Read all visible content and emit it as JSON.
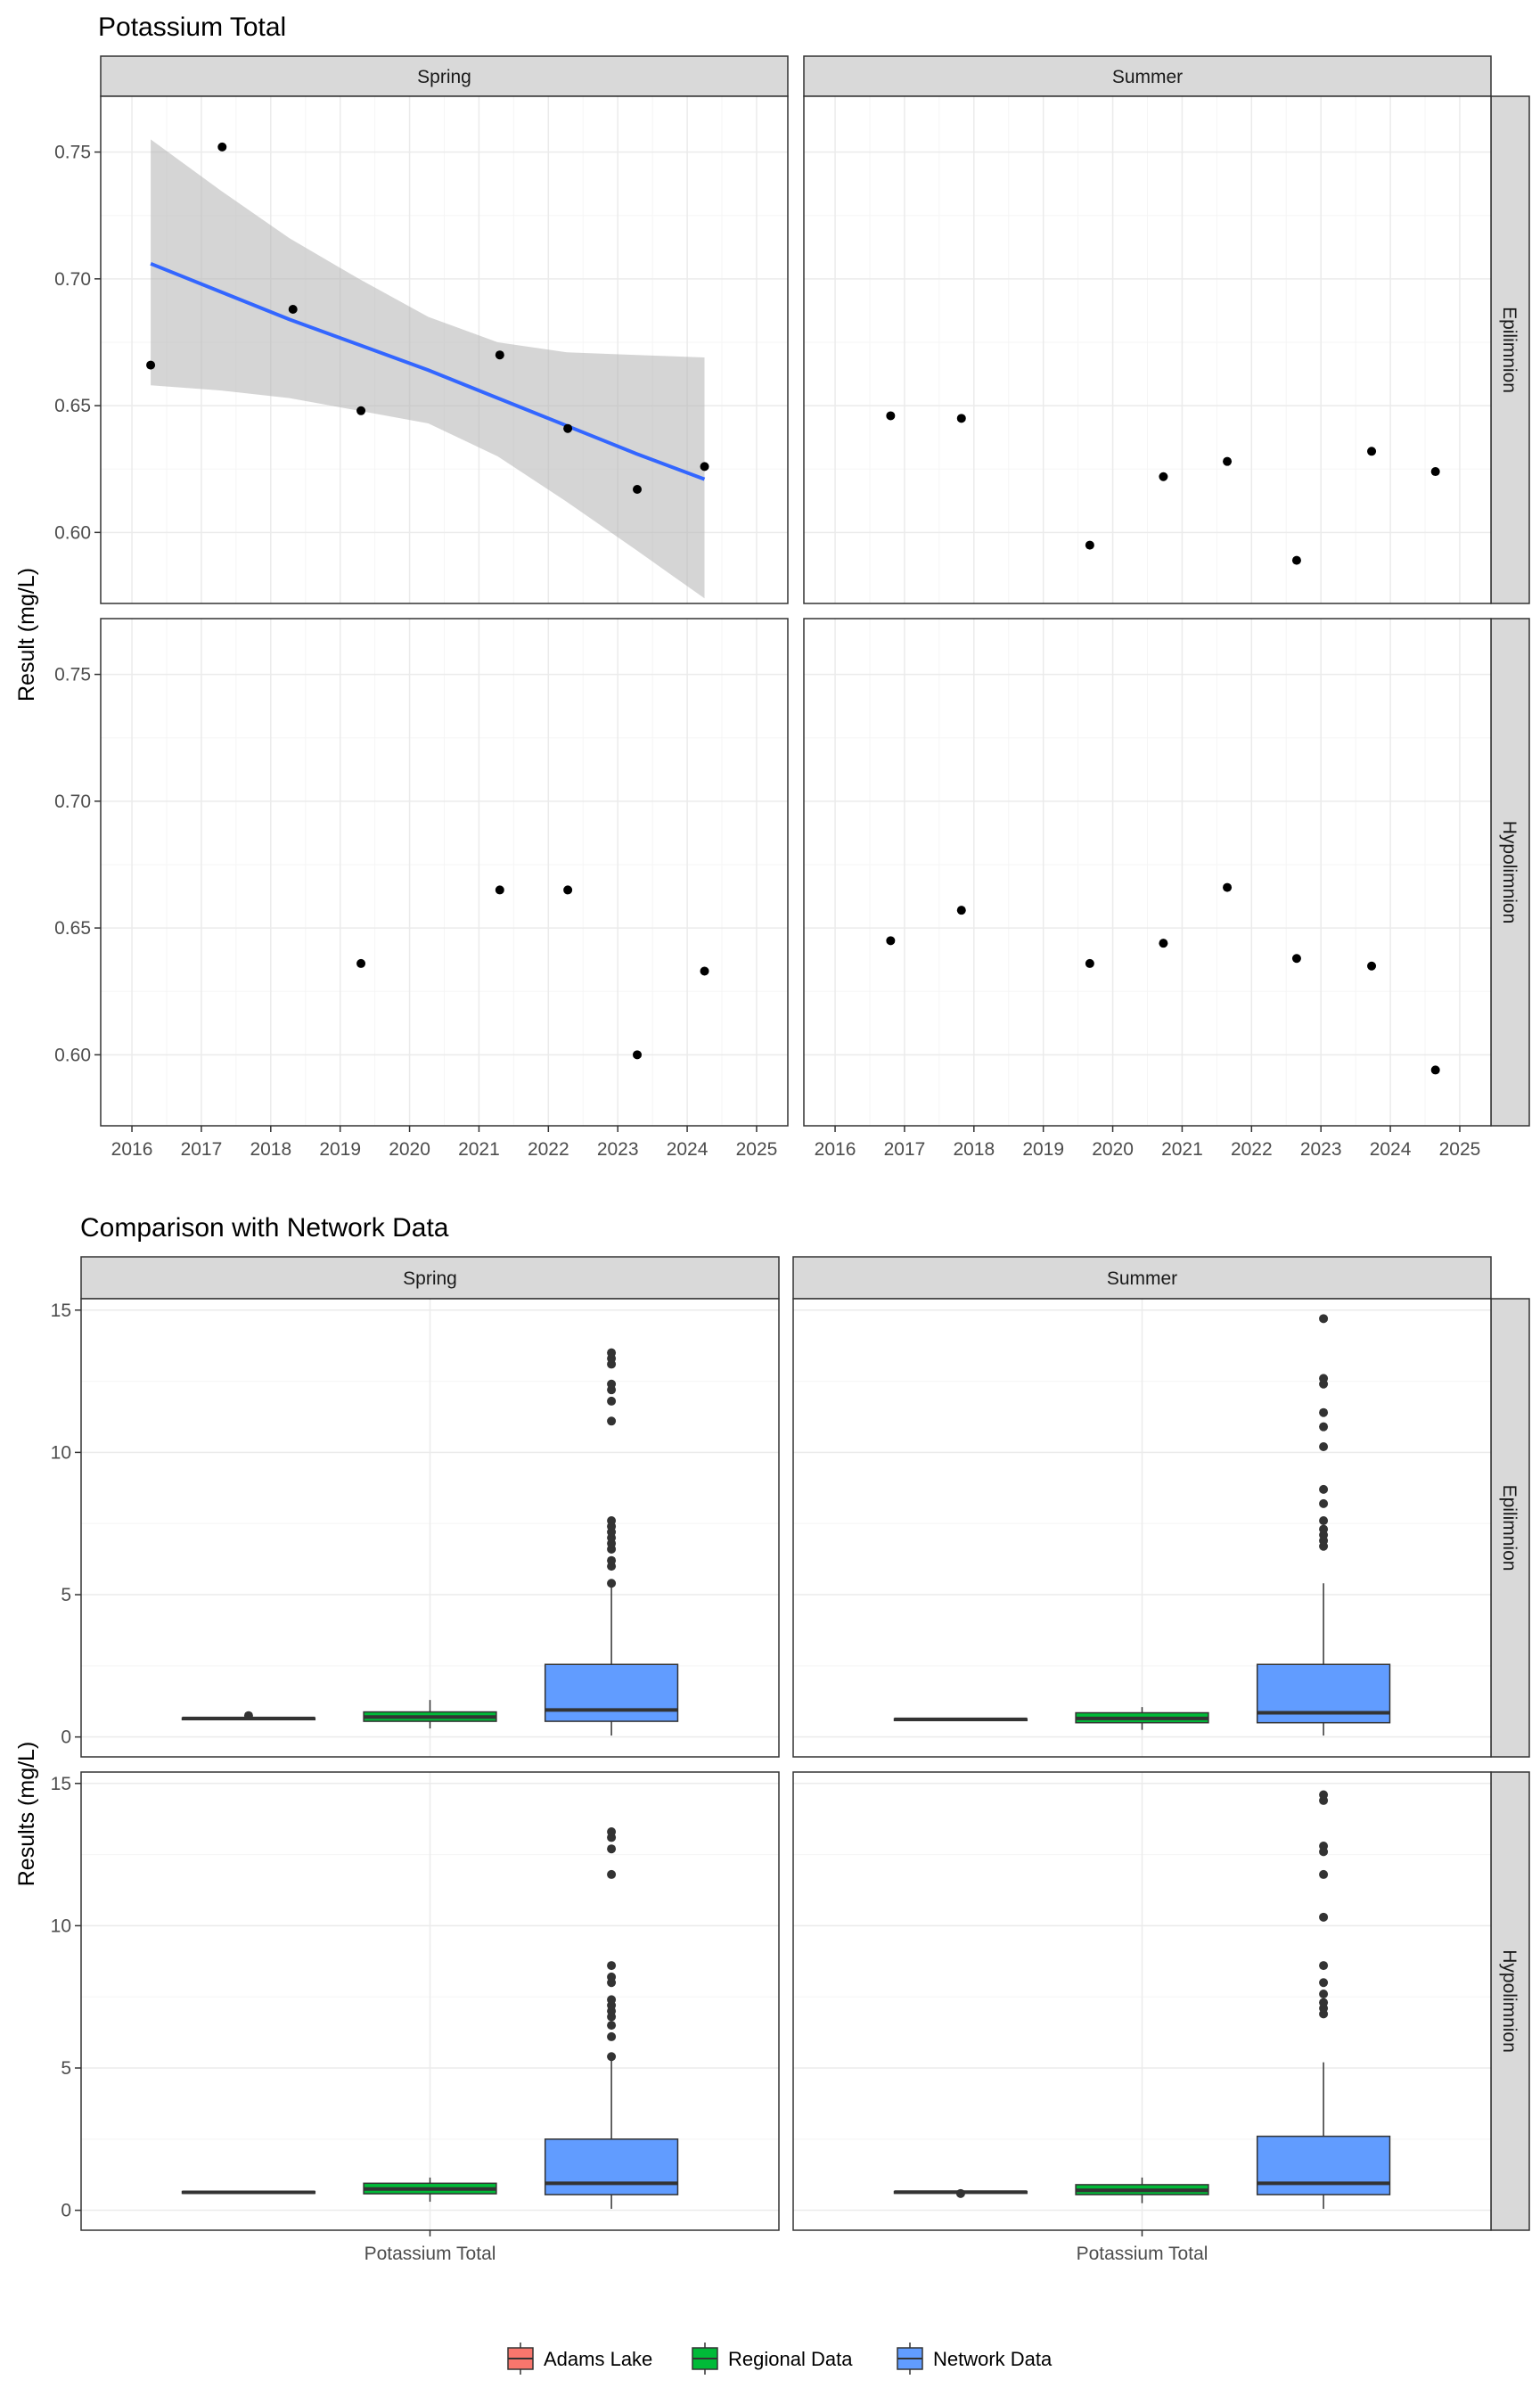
{
  "chart_data": [
    {
      "type": "scatter",
      "title": "Potassium Total",
      "ylabel": "Result (mg/L)",
      "xlabel": "",
      "x_ticks": [
        "2016",
        "2017",
        "2018",
        "2019",
        "2020",
        "2021",
        "2022",
        "2023",
        "2024",
        "2025"
      ],
      "xlim": [
        2015.55,
        2025.45
      ],
      "ylim": [
        0.572,
        0.772
      ],
      "y_ticks": [
        "0.60",
        "0.65",
        "0.70",
        "0.75"
      ],
      "facet_columns": [
        "Spring",
        "Summer"
      ],
      "facet_rows": [
        "Epilimnion",
        "Hypolimnion"
      ],
      "grid": true,
      "point_color": "#000000",
      "trend_color": "#3366ff",
      "band_color": "#b3b3b3",
      "panels": [
        {
          "column": "Spring",
          "row": "Epilimnion",
          "points": [
            {
              "x": 2016.27,
              "y": 0.666
            },
            {
              "x": 2017.3,
              "y": 0.752
            },
            {
              "x": 2018.32,
              "y": 0.688
            },
            {
              "x": 2019.3,
              "y": 0.648
            },
            {
              "x": 2021.3,
              "y": 0.67
            },
            {
              "x": 2022.28,
              "y": 0.641
            },
            {
              "x": 2023.28,
              "y": 0.617
            },
            {
              "x": 2024.25,
              "y": 0.626
            }
          ],
          "trend": {
            "x": [
              2016.27,
              2017.27,
              2018.27,
              2019.27,
              2020.27,
              2021.27,
              2022.27,
              2023.27,
              2024.25
            ],
            "fit": [
              0.706,
              0.695,
              0.684,
              0.674,
              0.664,
              0.653,
              0.642,
              0.631,
              0.621
            ],
            "lower": [
              0.658,
              0.656,
              0.653,
              0.648,
              0.643,
              0.63,
              0.612,
              0.593,
              0.574
            ],
            "upper": [
              0.755,
              0.735,
              0.716,
              0.7,
              0.685,
              0.675,
              0.671,
              0.67,
              0.669
            ]
          }
        },
        {
          "column": "Summer",
          "row": "Epilimnion",
          "points": [
            {
              "x": 2016.8,
              "y": 0.646
            },
            {
              "x": 2017.82,
              "y": 0.645
            },
            {
              "x": 2019.67,
              "y": 0.595
            },
            {
              "x": 2020.73,
              "y": 0.622
            },
            {
              "x": 2021.65,
              "y": 0.628
            },
            {
              "x": 2022.65,
              "y": 0.589
            },
            {
              "x": 2023.73,
              "y": 0.632
            },
            {
              "x": 2024.65,
              "y": 0.624
            }
          ]
        },
        {
          "column": "Spring",
          "row": "Hypolimnion",
          "points": [
            {
              "x": 2019.3,
              "y": 0.636
            },
            {
              "x": 2021.3,
              "y": 0.665
            },
            {
              "x": 2022.28,
              "y": 0.665
            },
            {
              "x": 2023.28,
              "y": 0.6
            },
            {
              "x": 2024.25,
              "y": 0.633
            }
          ]
        },
        {
          "column": "Summer",
          "row": "Hypolimnion",
          "points": [
            {
              "x": 2016.8,
              "y": 0.645
            },
            {
              "x": 2017.82,
              "y": 0.657
            },
            {
              "x": 2019.67,
              "y": 0.636
            },
            {
              "x": 2020.73,
              "y": 0.644
            },
            {
              "x": 2021.65,
              "y": 0.666
            },
            {
              "x": 2022.65,
              "y": 0.638
            },
            {
              "x": 2023.73,
              "y": 0.635
            },
            {
              "x": 2024.65,
              "y": 0.594
            }
          ]
        }
      ]
    },
    {
      "type": "box",
      "title": "Comparison with Network Data",
      "ylabel": "Results (mg/L)",
      "xlabel": "",
      "x_tick": "Potassium Total",
      "ylim": [
        -0.7,
        15.4
      ],
      "y_ticks": [
        "0",
        "5",
        "10",
        "15"
      ],
      "facet_columns": [
        "Spring",
        "Summer"
      ],
      "facet_rows": [
        "Epilimnion",
        "Hypolimnion"
      ],
      "grid": true,
      "legend": {
        "position": "bottom",
        "items": [
          {
            "label": "Adams Lake",
            "color": "#f8766d"
          },
          {
            "label": "Regional Data",
            "color": "#00ba38"
          },
          {
            "label": "Network Data",
            "color": "#619cff"
          }
        ]
      },
      "panels": [
        {
          "column": "Spring",
          "row": "Epilimnion",
          "boxes": [
            {
              "group": "Adams Lake",
              "q1": 0.63,
              "median": 0.65,
              "q3": 0.67,
              "whisker_low": 0.61,
              "whisker_high": 0.69,
              "outliers": [
                0.75
              ]
            },
            {
              "group": "Regional Data",
              "q1": 0.55,
              "median": 0.7,
              "q3": 0.88,
              "whisker_low": 0.3,
              "whisker_high": 1.3,
              "outliers": []
            },
            {
              "group": "Network Data",
              "q1": 0.55,
              "median": 0.95,
              "q3": 2.55,
              "whisker_low": 0.05,
              "whisker_high": 5.4,
              "outliers": [
                5.4,
                6.0,
                6.2,
                6.6,
                6.8,
                7.0,
                7.2,
                7.4,
                7.6,
                11.1,
                11.8,
                12.2,
                12.4,
                13.1,
                13.3,
                13.5
              ]
            }
          ]
        },
        {
          "column": "Summer",
          "row": "Epilimnion",
          "boxes": [
            {
              "group": "Adams Lake",
              "q1": 0.6,
              "median": 0.62,
              "q3": 0.64,
              "whisker_low": 0.59,
              "whisker_high": 0.65,
              "outliers": []
            },
            {
              "group": "Regional Data",
              "q1": 0.5,
              "median": 0.65,
              "q3": 0.85,
              "whisker_low": 0.25,
              "whisker_high": 1.05,
              "outliers": []
            },
            {
              "group": "Network Data",
              "q1": 0.5,
              "median": 0.85,
              "q3": 2.55,
              "whisker_low": 0.05,
              "whisker_high": 5.4,
              "outliers": [
                6.7,
                6.9,
                7.1,
                7.3,
                7.6,
                8.2,
                8.7,
                10.2,
                10.9,
                11.4,
                12.4,
                12.6,
                14.7
              ]
            }
          ]
        },
        {
          "column": "Spring",
          "row": "Hypolimnion",
          "boxes": [
            {
              "group": "Adams Lake",
              "q1": 0.61,
              "median": 0.63,
              "q3": 0.66,
              "whisker_low": 0.6,
              "whisker_high": 0.665,
              "outliers": []
            },
            {
              "group": "Regional Data",
              "q1": 0.58,
              "median": 0.75,
              "q3": 0.95,
              "whisker_low": 0.3,
              "whisker_high": 1.15,
              "outliers": []
            },
            {
              "group": "Network Data",
              "q1": 0.55,
              "median": 0.95,
              "q3": 2.5,
              "whisker_low": 0.05,
              "whisker_high": 5.4,
              "outliers": [
                5.4,
                6.1,
                6.5,
                6.8,
                7.0,
                7.2,
                7.4,
                8.0,
                8.2,
                8.6,
                11.8,
                12.7,
                13.1,
                13.3
              ]
            }
          ]
        },
        {
          "column": "Summer",
          "row": "Hypolimnion",
          "boxes": [
            {
              "group": "Adams Lake",
              "q1": 0.6,
              "median": 0.64,
              "q3": 0.66,
              "whisker_low": 0.59,
              "whisker_high": 0.67,
              "outliers": [
                0.59
              ]
            },
            {
              "group": "Regional Data",
              "q1": 0.55,
              "median": 0.7,
              "q3": 0.9,
              "whisker_low": 0.25,
              "whisker_high": 1.15,
              "outliers": []
            },
            {
              "group": "Network Data",
              "q1": 0.55,
              "median": 0.95,
              "q3": 2.6,
              "whisker_low": 0.05,
              "whisker_high": 5.2,
              "outliers": [
                6.9,
                7.1,
                7.3,
                7.6,
                8.0,
                8.6,
                10.3,
                11.8,
                12.6,
                12.8,
                14.4,
                14.6
              ]
            }
          ]
        }
      ]
    }
  ]
}
